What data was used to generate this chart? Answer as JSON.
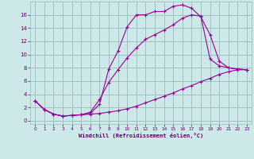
{
  "xlabel": "Windchill (Refroidissement éolien,°C)",
  "bg_color": "#cce8e8",
  "line_color": "#990099",
  "grid_color": "#99bbbb",
  "axis_label_color": "#660066",
  "tick_label_color": "#660066",
  "xlim": [
    -0.5,
    23.5
  ],
  "ylim": [
    -0.5,
    18
  ],
  "yticks": [
    0,
    2,
    4,
    6,
    8,
    10,
    12,
    14,
    16
  ],
  "xticks": [
    0,
    1,
    2,
    3,
    4,
    5,
    6,
    7,
    8,
    9,
    10,
    11,
    12,
    13,
    14,
    15,
    16,
    17,
    18,
    19,
    20,
    21,
    22,
    23
  ],
  "curve1_x": [
    0,
    1,
    2,
    3,
    4,
    5,
    6,
    7,
    8,
    9,
    10,
    11,
    12,
    13,
    14,
    15,
    16,
    17,
    18,
    19,
    20,
    21,
    22,
    23
  ],
  "curve1_y": [
    3.0,
    1.7,
    1.0,
    0.7,
    0.8,
    0.9,
    1.1,
    2.5,
    7.8,
    10.5,
    14.2,
    16.0,
    16.0,
    16.5,
    16.5,
    17.3,
    17.5,
    17.0,
    15.7,
    13.0,
    9.0,
    8.0,
    7.8,
    7.7
  ],
  "curve2_x": [
    0,
    1,
    2,
    3,
    4,
    5,
    6,
    7,
    8,
    9,
    10,
    11,
    12,
    13,
    14,
    15,
    16,
    17,
    18,
    19,
    20,
    21,
    22,
    23
  ],
  "curve2_y": [
    3.0,
    1.7,
    1.0,
    0.7,
    0.8,
    0.9,
    1.3,
    3.2,
    5.8,
    7.7,
    9.5,
    11.0,
    12.3,
    13.0,
    13.7,
    14.5,
    15.5,
    16.0,
    15.8,
    9.3,
    8.3,
    8.0,
    7.8,
    7.7
  ],
  "curve3_x": [
    0,
    1,
    2,
    3,
    4,
    5,
    6,
    7,
    8,
    9,
    10,
    11,
    12,
    13,
    14,
    15,
    16,
    17,
    18,
    19,
    20,
    21,
    22,
    23
  ],
  "curve3_y": [
    3.0,
    1.7,
    1.0,
    0.7,
    0.8,
    0.9,
    1.0,
    1.1,
    1.3,
    1.5,
    1.8,
    2.2,
    2.7,
    3.2,
    3.7,
    4.2,
    4.8,
    5.3,
    5.9,
    6.4,
    7.0,
    7.4,
    7.7,
    7.7
  ]
}
